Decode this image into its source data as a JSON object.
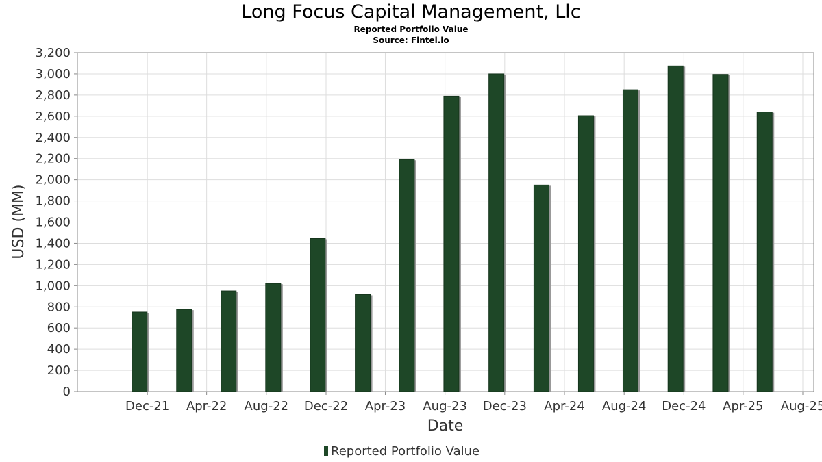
{
  "header": {
    "title": "Long Focus Capital Management, Llc",
    "subtitle": "Reported Portfolio Value",
    "source": "Source: Fintel.io"
  },
  "colors": {
    "bar": "#1e4727",
    "bar_shadow": "#999999",
    "grid": "#dddddd",
    "axis": "#888888"
  },
  "chart_data": {
    "type": "bar",
    "title": "Long Focus Capital Management, Llc",
    "subtitle": "Reported Portfolio Value",
    "xlabel": "Date",
    "ylabel": "USD (MM)",
    "ylim": [
      0,
      3200
    ],
    "grid": true,
    "legend_position": "bottom",
    "y_ticks": [
      0,
      200,
      400,
      600,
      800,
      1000,
      1200,
      1400,
      1600,
      1800,
      2000,
      2200,
      2400,
      2600,
      2800,
      3000,
      3200
    ],
    "y_tick_labels": [
      "0",
      "200",
      "400",
      "600",
      "800",
      "1,000",
      "1,200",
      "1,400",
      "1,600",
      "1,800",
      "2,000",
      "2,200",
      "2,400",
      "2,600",
      "2,800",
      "3,000",
      "3,200"
    ],
    "x_range": [
      "2021-08-01",
      "2025-08-01"
    ],
    "x_ticks": [
      {
        "date": "2021-12-01",
        "label": "Dec-21"
      },
      {
        "date": "2022-04-01",
        "label": "Apr-22"
      },
      {
        "date": "2022-08-01",
        "label": "Aug-22"
      },
      {
        "date": "2022-12-01",
        "label": "Dec-22"
      },
      {
        "date": "2023-04-01",
        "label": "Apr-23"
      },
      {
        "date": "2023-08-01",
        "label": "Aug-23"
      },
      {
        "date": "2023-12-01",
        "label": "Dec-23"
      },
      {
        "date": "2024-04-01",
        "label": "Apr-24"
      },
      {
        "date": "2024-08-01",
        "label": "Aug-24"
      },
      {
        "date": "2024-12-01",
        "label": "Dec-24"
      },
      {
        "date": "2025-04-01",
        "label": "Apr-25"
      },
      {
        "date": "2025-08-01",
        "label": "Aug-25"
      }
    ],
    "series": [
      {
        "name": "Reported Portfolio Value",
        "points": [
          {
            "date": "2021-11-15",
            "value": 750
          },
          {
            "date": "2022-02-14",
            "value": 775
          },
          {
            "date": "2022-05-16",
            "value": 950
          },
          {
            "date": "2022-08-15",
            "value": 1020
          },
          {
            "date": "2022-11-14",
            "value": 1445
          },
          {
            "date": "2023-02-14",
            "value": 915
          },
          {
            "date": "2023-05-15",
            "value": 2190
          },
          {
            "date": "2023-08-14",
            "value": 2790
          },
          {
            "date": "2023-11-14",
            "value": 3000
          },
          {
            "date": "2024-02-14",
            "value": 1950
          },
          {
            "date": "2024-05-15",
            "value": 2605
          },
          {
            "date": "2024-08-14",
            "value": 2850
          },
          {
            "date": "2024-11-14",
            "value": 3075
          },
          {
            "date": "2025-02-14",
            "value": 2995
          },
          {
            "date": "2025-05-15",
            "value": 2640
          }
        ]
      }
    ]
  }
}
